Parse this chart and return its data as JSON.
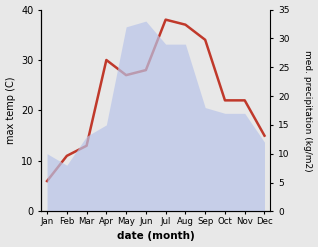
{
  "months": [
    "Jan",
    "Feb",
    "Mar",
    "Apr",
    "May",
    "Jun",
    "Jul",
    "Aug",
    "Sep",
    "Oct",
    "Nov",
    "Dec"
  ],
  "temp": [
    6,
    11,
    13,
    30,
    27,
    28,
    38,
    37,
    34,
    22,
    22,
    15
  ],
  "precip": [
    10,
    8,
    13,
    15,
    32,
    33,
    29,
    29,
    18,
    17,
    17,
    12
  ],
  "temp_color": "#c0392b",
  "precip_fill_color": "#b8c4e8",
  "temp_ylim": [
    0,
    40
  ],
  "precip_ylim": [
    0,
    35
  ],
  "xlabel": "date (month)",
  "ylabel_left": "max temp (C)",
  "ylabel_right": "med. precipitation (kg/m2)",
  "bg_color": "#e8e8e8",
  "left_tick_values": [
    0,
    10,
    20,
    30,
    40
  ],
  "right_tick_values": [
    0,
    5,
    10,
    15,
    20,
    25,
    30,
    35
  ]
}
